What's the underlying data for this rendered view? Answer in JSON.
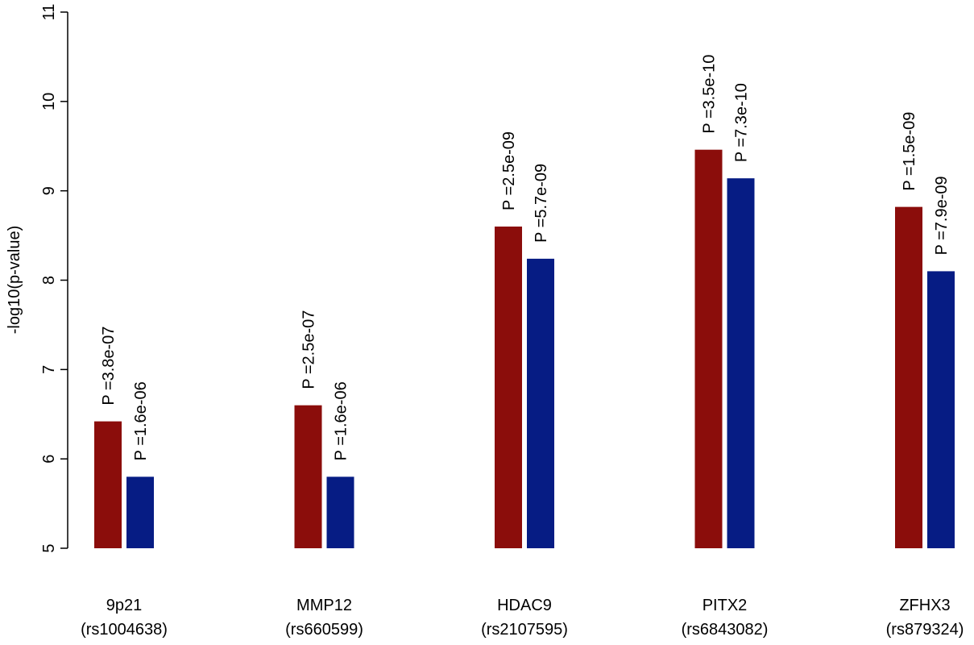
{
  "chart_data": {
    "type": "bar",
    "title": "",
    "xlabel": "",
    "ylabel": "-log10(p-value)",
    "ylim": [
      5,
      11
    ],
    "yticks": [
      5,
      6,
      7,
      8,
      9,
      10,
      11
    ],
    "grid": false,
    "legend": "none",
    "categories": [
      {
        "name": "9p21",
        "snp": "(rs1004638)"
      },
      {
        "name": "MMP12",
        "snp": "(rs660599)"
      },
      {
        "name": "HDAC9",
        "snp": "(rs2107595)"
      },
      {
        "name": "PITX2",
        "snp": "(rs6843082)"
      },
      {
        "name": "ZFHX3",
        "snp": "(rs879324)"
      }
    ],
    "series": [
      {
        "color": "#8b0d0b",
        "values": [
          6.42,
          6.6,
          8.6,
          9.46,
          8.82
        ],
        "labels": [
          "P =3.8e-07",
          "P =2.5e-07",
          "P =2.5e-09",
          "P =3.5e-10",
          "P =1.5e-09"
        ]
      },
      {
        "color": "#061c84",
        "values": [
          5.8,
          5.8,
          8.24,
          9.14,
          8.1
        ],
        "labels": [
          "P =1.6e-06",
          "P =1.6e-06",
          "P =5.7e-09",
          "P =7.3e-10",
          "P =7.9e-09"
        ]
      }
    ]
  }
}
